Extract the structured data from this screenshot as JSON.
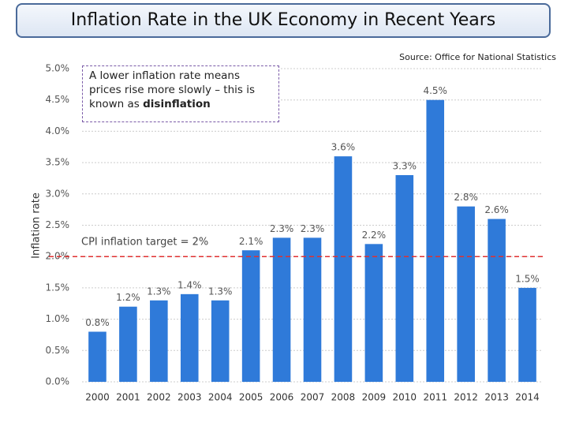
{
  "chart_data": {
    "type": "bar",
    "title": "Inflation Rate in the UK Economy in Recent Years",
    "source": "Source: Office for National Statistics",
    "y_label": "Inflation rate",
    "categories": [
      "2000",
      "2001",
      "2002",
      "2003",
      "2004",
      "2005",
      "2006",
      "2007",
      "2008",
      "2009",
      "2010",
      "2011",
      "2012",
      "2013",
      "2014"
    ],
    "values": [
      0.8,
      1.2,
      1.3,
      1.4,
      1.3,
      2.1,
      2.3,
      2.3,
      3.6,
      2.2,
      3.3,
      4.5,
      2.8,
      2.6,
      1.5
    ],
    "value_labels": [
      "0.8%",
      "1.2%",
      "1.3%",
      "1.4%",
      "1.3%",
      "2.1%",
      "2.3%",
      "2.3%",
      "3.6%",
      "2.2%",
      "3.3%",
      "4.5%",
      "2.8%",
      "2.6%",
      "1.5%"
    ],
    "color": "#2f7ad9",
    "ylim": [
      0,
      5
    ],
    "yticks": [
      {
        "value": 0,
        "label": "0.0%"
      },
      {
        "value": 0.5,
        "label": "0.5%"
      },
      {
        "value": 1,
        "label": "1.0%"
      },
      {
        "value": 1.5,
        "label": "1.5%"
      },
      {
        "value": 2,
        "label": "2.0%"
      },
      {
        "value": 2.5,
        "label": "2.5%"
      },
      {
        "value": 3,
        "label": "3.0%"
      },
      {
        "value": 3.5,
        "label": "3.5%"
      },
      {
        "value": 4,
        "label": "4.0%"
      },
      {
        "value": 4.5,
        "label": "4.5%"
      },
      {
        "value": 5,
        "label": "5.0%"
      }
    ],
    "grid": true,
    "target": {
      "value": 2,
      "label": "CPI inflation target = 2%",
      "color": "#e03030"
    },
    "annotation": {
      "text": "A lower inflation rate means prices rise more slowly – this is known as ",
      "emphasis": "disinflation"
    }
  }
}
